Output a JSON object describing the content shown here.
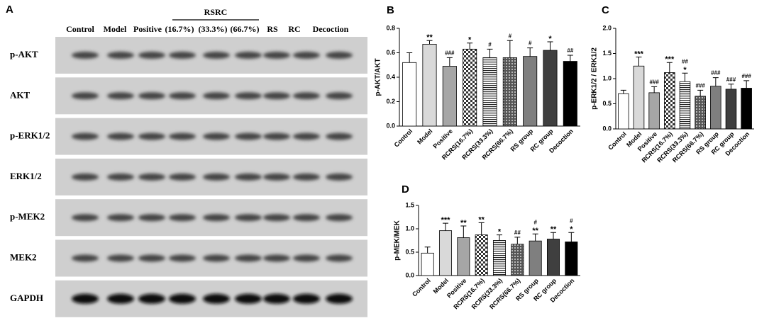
{
  "blot": {
    "panel_label": "A",
    "group_label": "RSRC",
    "columns": [
      "Control",
      "Model",
      "Positive",
      "(16.7%)",
      "(33.3%)",
      "(66.7%)",
      "RS",
      "RC",
      "Decoction"
    ],
    "rows": [
      "p-AKT",
      "AKT",
      "p-ERK1/2",
      "ERK1/2",
      "p-MEK2",
      "MEK2",
      "GAPDH"
    ]
  },
  "chart_data": [
    {
      "type": "bar",
      "panel_label": "B",
      "ylabel": "p-AKT/AKT",
      "categories": [
        "Control",
        "Model",
        "Positive",
        "RCRS(16.7%)",
        "RCRS(33.3%)",
        "RCRS(66.7%)",
        "RS group",
        "RC group",
        "Decoction"
      ],
      "values": [
        0.52,
        0.67,
        0.49,
        0.63,
        0.56,
        0.56,
        0.57,
        0.62,
        0.53
      ],
      "errors": [
        0.08,
        0.03,
        0.07,
        0.05,
        0.07,
        0.14,
        0.07,
        0.07,
        0.05
      ],
      "annotations": [
        null,
        [
          "**"
        ],
        [
          "###"
        ],
        [
          "*"
        ],
        [
          "#"
        ],
        [
          "#"
        ],
        [
          "#"
        ],
        [
          "*"
        ],
        [
          "##"
        ]
      ],
      "colors": [
        "#ffffff",
        "#d9d9d9",
        "#a6a6a6",
        "#ffffff",
        "#ffffff",
        "#ffffff",
        "#7f7f7f",
        "#3f3f3f",
        "#000000"
      ],
      "hatch": [
        null,
        null,
        null,
        "checker",
        "stripes",
        "dots",
        null,
        null,
        null
      ],
      "ylim": [
        0,
        0.8
      ],
      "yticks": [
        {
          "value": 0,
          "label": "0.0"
        },
        0.2,
        0.4,
        0.6,
        0.8
      ]
    },
    {
      "type": "bar",
      "panel_label": "C",
      "ylabel": "p-ERK1/2 / ERK1/2",
      "categories": [
        "Control",
        "Model",
        "Positive",
        "RCRS(16.7%)",
        "RCRS(33.3%)",
        "RCRS(66.7%)",
        "RS group",
        "RC group",
        "Decoction"
      ],
      "values": [
        0.7,
        1.25,
        0.72,
        1.12,
        0.94,
        0.65,
        0.85,
        0.79,
        0.81
      ],
      "errors": [
        0.07,
        0.18,
        0.12,
        0.2,
        0.17,
        0.12,
        0.17,
        0.1,
        0.15
      ],
      "annotations": [
        null,
        [
          "***"
        ],
        [
          "###"
        ],
        [
          "***"
        ],
        [
          "##",
          "*"
        ],
        [
          "###"
        ],
        [
          "###"
        ],
        [
          "###"
        ],
        [
          "###"
        ]
      ],
      "colors": [
        "#ffffff",
        "#d9d9d9",
        "#a6a6a6",
        "#ffffff",
        "#ffffff",
        "#ffffff",
        "#7f7f7f",
        "#3f3f3f",
        "#000000"
      ],
      "hatch": [
        null,
        null,
        null,
        "checker",
        "stripes",
        "dots",
        null,
        null,
        null
      ],
      "ylim": [
        0,
        2.0
      ],
      "yticks": [
        {
          "value": 0,
          "label": "0.0"
        },
        0.5,
        {
          "value": 1,
          "label": "1.0"
        },
        1.5,
        {
          "value": 2,
          "label": "2.0"
        }
      ]
    },
    {
      "type": "bar",
      "panel_label": "D",
      "ylabel": "p-MEK/MEK",
      "categories": [
        "Control",
        "Model",
        "Positive",
        "RCRS(16.7%)",
        "RCRS(33.3%)",
        "RCRS(66.7%)",
        "RS group",
        "RC group",
        "Decoction"
      ],
      "values": [
        0.48,
        0.96,
        0.81,
        0.87,
        0.75,
        0.67,
        0.74,
        0.78,
        0.72
      ],
      "errors": [
        0.13,
        0.16,
        0.25,
        0.26,
        0.12,
        0.15,
        0.15,
        0.14,
        0.2
      ],
      "annotations": [
        null,
        [
          "***"
        ],
        [
          "**"
        ],
        [
          "**"
        ],
        [
          "*"
        ],
        [
          "##"
        ],
        [
          "#",
          "**"
        ],
        [
          "**"
        ],
        [
          "#",
          "*"
        ]
      ],
      "colors": [
        "#ffffff",
        "#d9d9d9",
        "#a6a6a6",
        "#ffffff",
        "#ffffff",
        "#ffffff",
        "#7f7f7f",
        "#3f3f3f",
        "#000000"
      ],
      "hatch": [
        null,
        null,
        null,
        "checker",
        "stripes",
        "dots",
        null,
        null,
        null
      ],
      "ylim": [
        0,
        1.5
      ],
      "yticks": [
        {
          "value": 0,
          "label": "0.0"
        },
        0.5,
        {
          "value": 1,
          "label": "1.0"
        },
        1.5
      ]
    }
  ]
}
